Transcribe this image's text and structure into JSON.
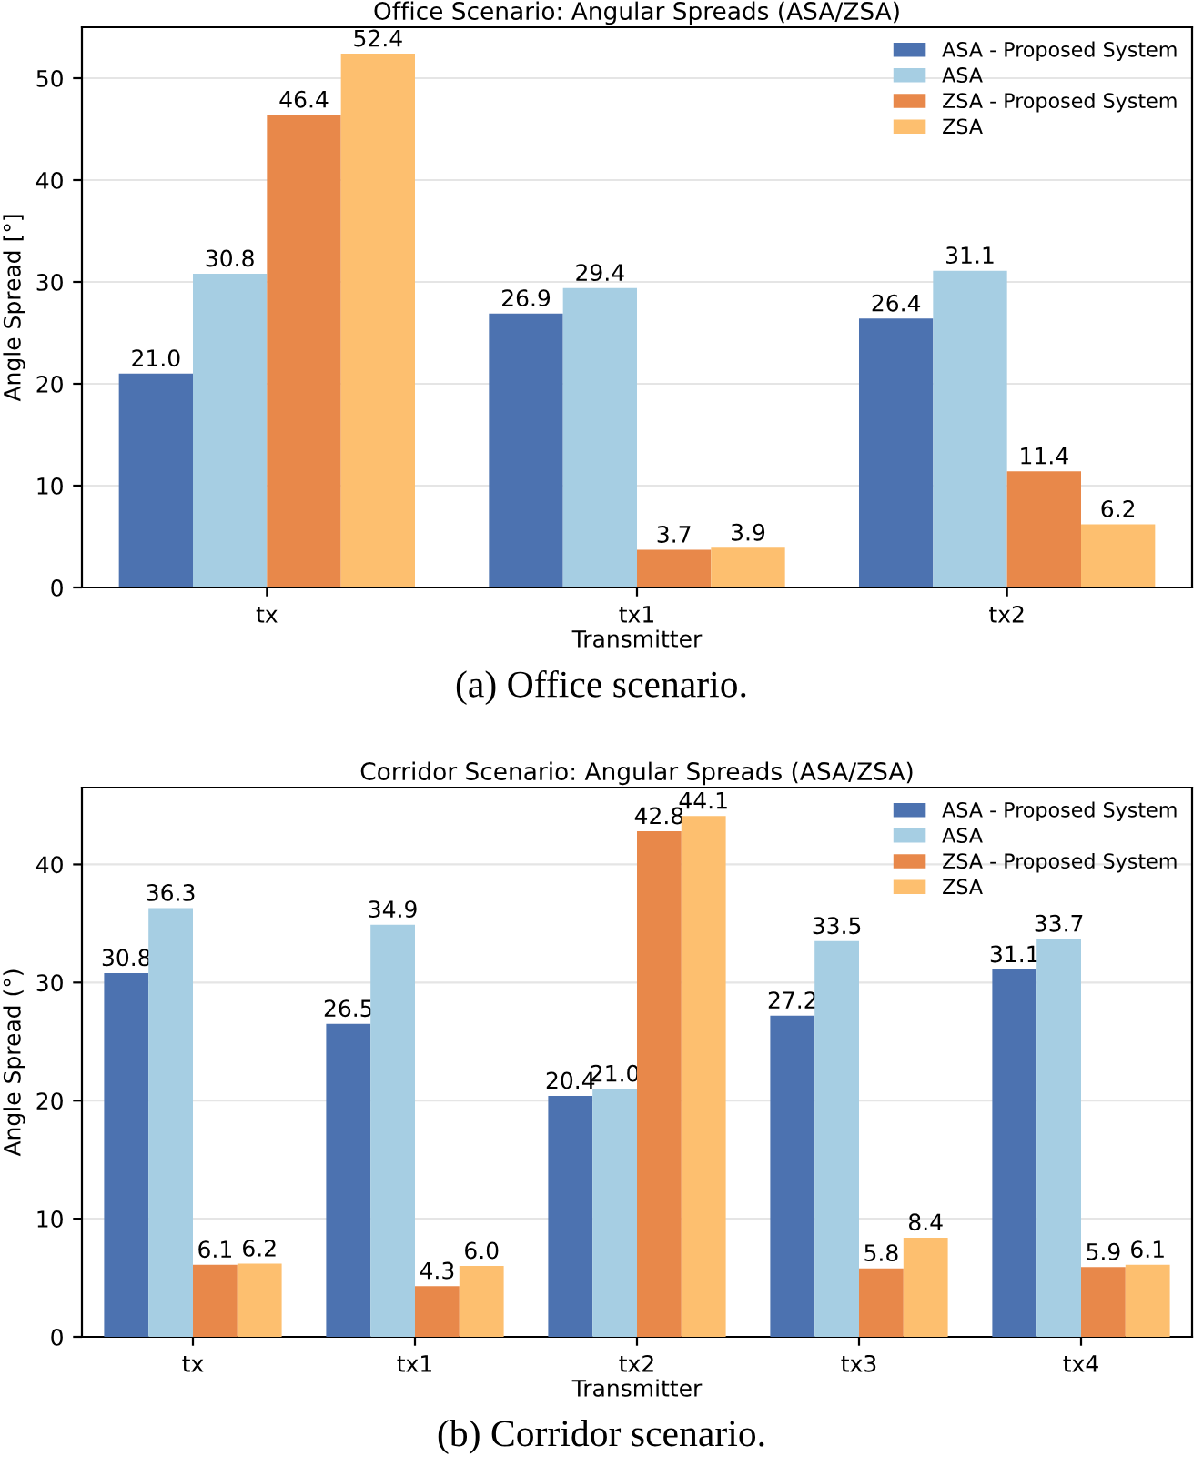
{
  "chart_data": [
    {
      "type": "bar",
      "title": "Office Scenario: Angular Spreads (ASA/ZSA)",
      "xlabel": "Transmitter",
      "ylabel": "Angle Spread [°]",
      "categories": [
        "tx",
        "tx1",
        "tx2"
      ],
      "series": [
        {
          "name": "ASA - Proposed System",
          "color": "#4c72b0",
          "values": [
            21.0,
            26.9,
            26.4
          ],
          "value_labels": [
            "21.0",
            "26.9",
            "26.4"
          ]
        },
        {
          "name": "ASA",
          "color": "#a6cee3",
          "values": [
            30.8,
            29.4,
            31.1
          ],
          "value_labels": [
            "30.8",
            "29.4",
            "31.1"
          ]
        },
        {
          "name": "ZSA - Proposed System",
          "color": "#e8884a",
          "values": [
            46.4,
            3.7,
            11.4
          ],
          "value_labels": [
            "46.4",
            "3.7",
            "11.4"
          ]
        },
        {
          "name": "ZSA",
          "color": "#fdbf6f",
          "values": [
            52.4,
            3.9,
            6.2
          ],
          "value_labels": [
            "52.4",
            "3.9",
            "6.2"
          ]
        }
      ],
      "ylim": [
        0,
        55
      ],
      "yticks": [
        0,
        10,
        20,
        30,
        40,
        50
      ],
      "grid": "y",
      "legend": "top right",
      "annotations": [
        "(a) Office scenario."
      ]
    },
    {
      "type": "bar",
      "title": "Corridor Scenario: Angular Spreads (ASA/ZSA)",
      "xlabel": "Transmitter",
      "ylabel": "Angle Spread (°)",
      "categories": [
        "tx",
        "tx1",
        "tx2",
        "tx3",
        "tx4"
      ],
      "series": [
        {
          "name": "ASA - Proposed System",
          "color": "#4c72b0",
          "values": [
            30.8,
            26.5,
            20.4,
            27.2,
            31.1
          ],
          "value_labels": [
            "30.8",
            "26.5",
            "20.4",
            "27.2",
            "31.1"
          ]
        },
        {
          "name": "ASA",
          "color": "#a6cee3",
          "values": [
            36.3,
            34.9,
            21.0,
            33.5,
            33.7
          ],
          "value_labels": [
            "36.3",
            "34.9",
            "21.0",
            "33.5",
            "33.7"
          ]
        },
        {
          "name": "ZSA - Proposed System",
          "color": "#e8884a",
          "values": [
            6.1,
            4.3,
            42.8,
            5.8,
            5.9
          ],
          "value_labels": [
            "6.1",
            "4.3",
            "42.8",
            "5.8",
            "5.9"
          ]
        },
        {
          "name": "ZSA",
          "color": "#fdbf6f",
          "values": [
            6.2,
            6.0,
            44.1,
            8.4,
            6.1
          ],
          "value_labels": [
            "6.2",
            "6.0",
            "44.1",
            "8.4",
            "6.1"
          ]
        }
      ],
      "ylim": [
        0,
        46.5
      ],
      "yticks": [
        0,
        10,
        20,
        30,
        40
      ],
      "grid": "y",
      "legend": "top right",
      "annotations": [
        "(b) Corridor scenario."
      ]
    }
  ]
}
